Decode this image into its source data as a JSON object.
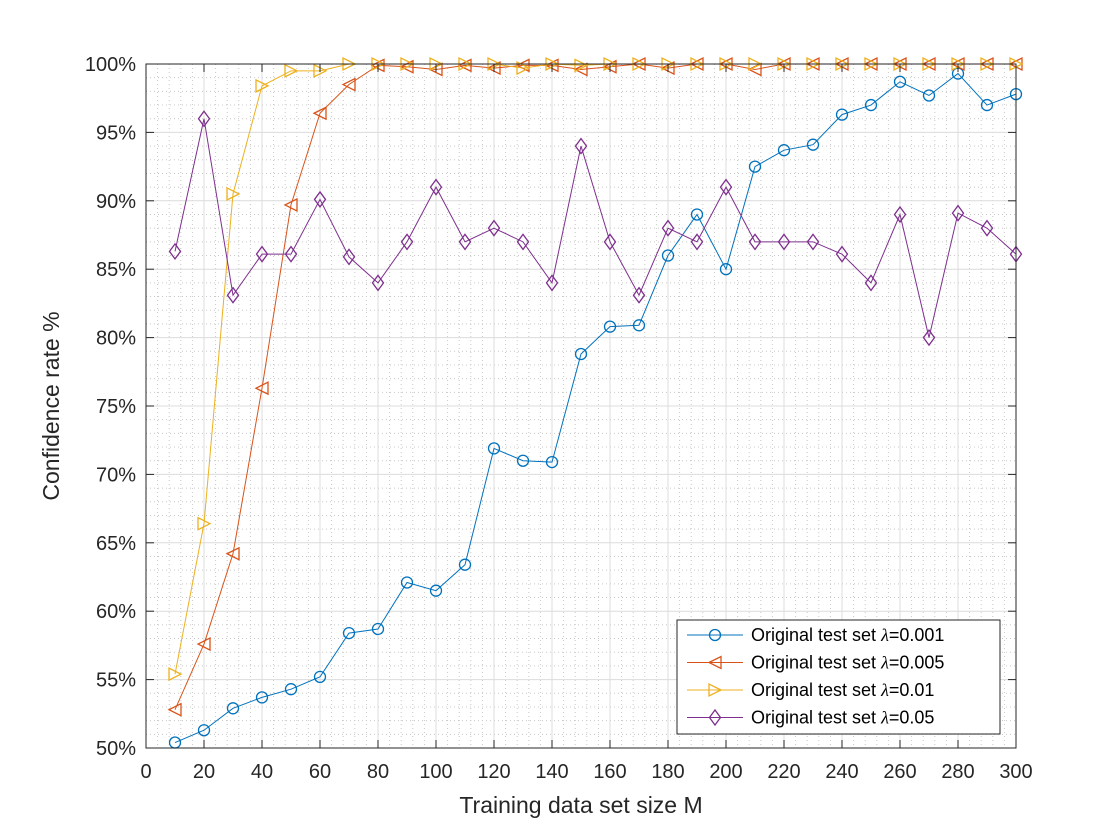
{
  "chart_data": {
    "type": "line",
    "title": "",
    "xlabel": "Training data set size M",
    "ylabel": "Confidence rate %",
    "xlim": [
      0,
      300
    ],
    "ylim": [
      50,
      100
    ],
    "x_ticks": [
      0,
      20,
      40,
      60,
      80,
      100,
      120,
      140,
      160,
      180,
      200,
      220,
      240,
      260,
      280,
      300
    ],
    "x_tick_labels": [
      "0",
      "20",
      "40",
      "60",
      "80",
      "100",
      "120",
      "140",
      "160",
      "180",
      "200",
      "220",
      "240",
      "260",
      "280",
      "300"
    ],
    "y_ticks": [
      50,
      55,
      60,
      65,
      70,
      75,
      80,
      85,
      90,
      95,
      100
    ],
    "y_tick_labels": [
      "50%",
      "55%",
      "60%",
      "65%",
      "70%",
      "75%",
      "80%",
      "85%",
      "90%",
      "95%",
      "100%"
    ],
    "grid": "major and minor (dotted minor)",
    "legend_position": "bottom-right",
    "x": [
      10,
      20,
      30,
      40,
      50,
      60,
      70,
      80,
      90,
      100,
      110,
      120,
      130,
      140,
      150,
      160,
      170,
      180,
      190,
      200,
      210,
      220,
      230,
      240,
      250,
      260,
      270,
      280,
      290,
      300
    ],
    "series": [
      {
        "name_prefix": "Original test set ",
        "name_symbol": "λ",
        "name_suffix": "=0.001",
        "color": "#0072BD",
        "marker": "circle",
        "values": [
          50.4,
          51.3,
          52.9,
          53.7,
          54.3,
          55.2,
          58.4,
          58.7,
          62.1,
          61.5,
          63.4,
          71.9,
          71.0,
          70.9,
          78.8,
          80.8,
          80.9,
          86.0,
          89.0,
          85.0,
          92.5,
          93.7,
          94.1,
          96.3,
          97.0,
          98.7,
          97.7,
          99.3,
          97.0,
          97.8
        ]
      },
      {
        "name_prefix": "Original test set ",
        "name_symbol": "λ",
        "name_suffix": "=0.005",
        "color": "#D95319",
        "marker": "triangle-left",
        "values": [
          52.8,
          57.6,
          64.2,
          76.3,
          89.7,
          96.4,
          98.5,
          99.9,
          99.8,
          99.6,
          99.9,
          99.7,
          99.9,
          99.9,
          99.6,
          99.8,
          100.0,
          99.7,
          100.0,
          100.0,
          99.6,
          100.0,
          100.0,
          100.0,
          100.0,
          100.0,
          100.0,
          100.0,
          100.0,
          100.0
        ]
      },
      {
        "name_prefix": "Original test set ",
        "name_symbol": "λ",
        "name_suffix": "=0.01",
        "color": "#EDB120",
        "marker": "triangle-right",
        "values": [
          55.4,
          66.4,
          90.5,
          98.4,
          99.5,
          99.5,
          100.0,
          100.0,
          100.0,
          100.0,
          100.0,
          100.0,
          99.7,
          100.0,
          99.9,
          100.0,
          100.0,
          100.0,
          100.0,
          100.0,
          100.0,
          100.0,
          100.0,
          100.0,
          100.0,
          100.0,
          100.0,
          100.0,
          100.0,
          100.0
        ]
      },
      {
        "name_prefix": "Original test set ",
        "name_symbol": "λ",
        "name_suffix": "=0.05",
        "color": "#7E2F8E",
        "marker": "diamond",
        "values": [
          86.3,
          96.0,
          83.1,
          86.1,
          86.1,
          90.1,
          85.9,
          84.0,
          87.0,
          91.0,
          87.0,
          88.0,
          87.0,
          84.0,
          94.0,
          87.0,
          83.1,
          88.0,
          87.0,
          91.0,
          87.0,
          87.0,
          87.0,
          86.1,
          84.0,
          89.0,
          80.0,
          89.1,
          88.0,
          86.1
        ]
      }
    ]
  }
}
